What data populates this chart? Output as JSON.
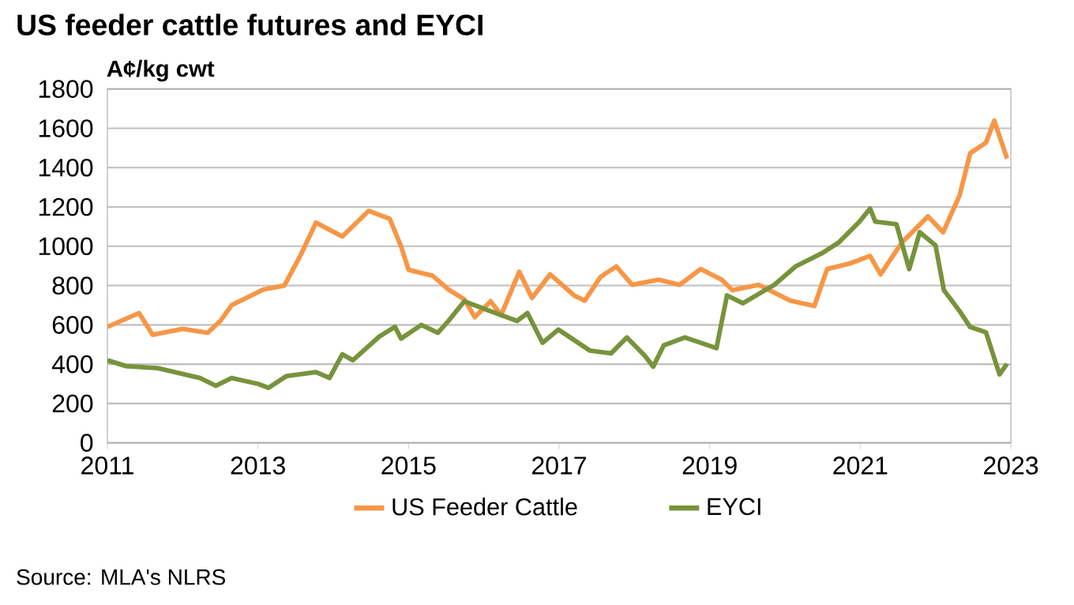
{
  "chart_data": {
    "type": "line",
    "title": "US feeder cattle futures and EYCI",
    "ylabel": "A¢/kg cwt",
    "xlim": [
      2011,
      2023
    ],
    "xticks": [
      2011,
      2013,
      2015,
      2017,
      2019,
      2021,
      2023
    ],
    "ylim": [
      0,
      1800
    ],
    "yticks": [
      0,
      200,
      400,
      600,
      800,
      1000,
      1200,
      1400,
      1600,
      1800
    ],
    "grid": "y",
    "legend": "bottom",
    "series": [
      {
        "name": "US Feeder Cattle",
        "color": "#f79646",
        "x": [
          2011.0,
          2011.42,
          2011.6,
          2012.0,
          2012.33,
          2012.5,
          2012.65,
          2013.07,
          2013.35,
          2013.56,
          2013.77,
          2014.12,
          2014.47,
          2014.75,
          2014.9,
          2015.0,
          2015.32,
          2015.53,
          2015.74,
          2015.88,
          2016.09,
          2016.23,
          2016.47,
          2016.64,
          2016.88,
          2017.2,
          2017.34,
          2017.55,
          2017.76,
          2017.97,
          2018.32,
          2018.6,
          2018.88,
          2019.16,
          2019.3,
          2019.65,
          2020.07,
          2020.39,
          2020.56,
          2020.85,
          2021.13,
          2021.27,
          2021.55,
          2021.9,
          2022.1,
          2022.32,
          2022.46,
          2022.67,
          2022.78,
          2022.95
        ],
        "values": [
          590,
          660,
          550,
          580,
          560,
          620,
          700,
          780,
          800,
          950,
          1120,
          1050,
          1180,
          1140,
          1000,
          880,
          850,
          780,
          730,
          640,
          720,
          650,
          870,
          737,
          857,
          750,
          723,
          844,
          897,
          804,
          830,
          804,
          884,
          830,
          777,
          804,
          723,
          696,
          884,
          911,
          951,
          857,
          1018,
          1152,
          1071,
          1259,
          1473,
          1527,
          1639,
          1446
        ]
      },
      {
        "name": "EYCI",
        "color": "#77933c",
        "x": [
          2011.0,
          2011.25,
          2011.67,
          2012.23,
          2012.44,
          2012.65,
          2013.0,
          2013.14,
          2013.38,
          2013.77,
          2013.95,
          2014.12,
          2014.26,
          2014.61,
          2014.82,
          2014.9,
          2015.17,
          2015.39,
          2015.53,
          2015.74,
          2015.88,
          2016.23,
          2016.44,
          2016.58,
          2016.78,
          2016.99,
          2017.41,
          2017.69,
          2017.9,
          2018.14,
          2018.25,
          2018.39,
          2018.67,
          2019.09,
          2019.23,
          2019.44,
          2019.86,
          2020.14,
          2020.49,
          2020.71,
          2020.99,
          2021.13,
          2021.2,
          2021.48,
          2021.65,
          2021.79,
          2022.0,
          2022.11,
          2022.32,
          2022.46,
          2022.67,
          2022.85,
          2022.95
        ],
        "values": [
          420,
          390,
          380,
          330,
          290,
          330,
          300,
          280,
          340,
          360,
          330,
          450,
          420,
          540,
          590,
          530,
          600,
          560,
          620,
          720,
          700,
          650,
          620,
          660,
          509,
          576,
          469,
          455,
          536,
          442,
          388,
          496,
          536,
          482,
          750,
          710,
          804,
          897,
          964,
          1018,
          1125,
          1192,
          1125,
          1112,
          884,
          1071,
          1004,
          777,
          670,
          589,
          562,
          348,
          402
        ]
      }
    ],
    "annotations": [
      "Source: MLA's NLRS"
    ]
  }
}
